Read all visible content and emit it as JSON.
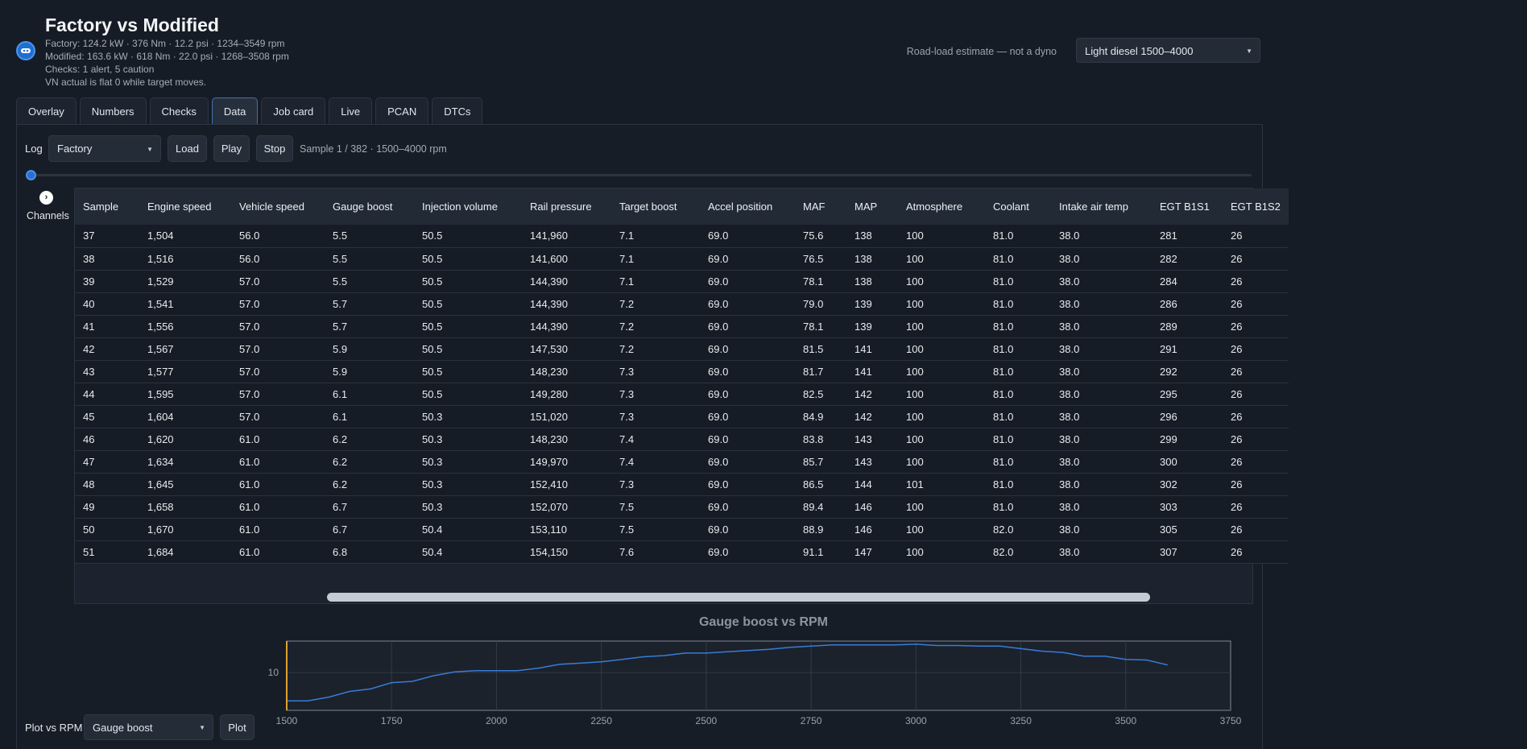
{
  "header": {
    "title": "Factory vs Modified",
    "factory_line": "Factory: 124.2 kW  ·  376 Nm  ·  12.2 psi  ·  1234–3549 rpm",
    "modified_line": "Modified: 163.6 kW  ·  618 Nm  ·  22.0 psi  ·  1268–3508 rpm",
    "checks_line": "Checks: 1 alert, 5 caution",
    "vn_line": "VN actual is flat 0 while target moves.",
    "road_note": "Road-load estimate — not a dyno",
    "profile_select": "Light diesel 1500–4000"
  },
  "tabs": [
    "Overlay",
    "Numbers",
    "Checks",
    "Data",
    "Job card",
    "Live",
    "PCAN",
    "DTCs"
  ],
  "active_tab": "Data",
  "toolbar": {
    "log_label": "Log",
    "log_select": "Factory",
    "load": "Load",
    "play": "Play",
    "stop": "Stop",
    "sample_info": "Sample 1 / 382  ·  1500–4000 rpm"
  },
  "channels": {
    "label": "Channels"
  },
  "table": {
    "columns": [
      "Sample",
      "Engine speed",
      "Vehicle speed",
      "Gauge boost",
      "Injection volume",
      "Rail pressure",
      "Target boost",
      "Accel position",
      "MAF",
      "MAP",
      "Atmosphere",
      "Coolant",
      "Intake air temp",
      "EGT B1S1",
      "EGT B1S2"
    ],
    "rows": [
      [
        "37",
        "1,504",
        "56.0",
        "5.5",
        "50.5",
        "141,960",
        "7.1",
        "69.0",
        "75.6",
        "138",
        "100",
        "81.0",
        "38.0",
        "281",
        "26"
      ],
      [
        "38",
        "1,516",
        "56.0",
        "5.5",
        "50.5",
        "141,600",
        "7.1",
        "69.0",
        "76.5",
        "138",
        "100",
        "81.0",
        "38.0",
        "282",
        "26"
      ],
      [
        "39",
        "1,529",
        "57.0",
        "5.5",
        "50.5",
        "144,390",
        "7.1",
        "69.0",
        "78.1",
        "138",
        "100",
        "81.0",
        "38.0",
        "284",
        "26"
      ],
      [
        "40",
        "1,541",
        "57.0",
        "5.7",
        "50.5",
        "144,390",
        "7.2",
        "69.0",
        "79.0",
        "139",
        "100",
        "81.0",
        "38.0",
        "286",
        "26"
      ],
      [
        "41",
        "1,556",
        "57.0",
        "5.7",
        "50.5",
        "144,390",
        "7.2",
        "69.0",
        "78.1",
        "139",
        "100",
        "81.0",
        "38.0",
        "289",
        "26"
      ],
      [
        "42",
        "1,567",
        "57.0",
        "5.9",
        "50.5",
        "147,530",
        "7.2",
        "69.0",
        "81.5",
        "141",
        "100",
        "81.0",
        "38.0",
        "291",
        "26"
      ],
      [
        "43",
        "1,577",
        "57.0",
        "5.9",
        "50.5",
        "148,230",
        "7.3",
        "69.0",
        "81.7",
        "141",
        "100",
        "81.0",
        "38.0",
        "292",
        "26"
      ],
      [
        "44",
        "1,595",
        "57.0",
        "6.1",
        "50.5",
        "149,280",
        "7.3",
        "69.0",
        "82.5",
        "142",
        "100",
        "81.0",
        "38.0",
        "295",
        "26"
      ],
      [
        "45",
        "1,604",
        "57.0",
        "6.1",
        "50.3",
        "151,020",
        "7.3",
        "69.0",
        "84.9",
        "142",
        "100",
        "81.0",
        "38.0",
        "296",
        "26"
      ],
      [
        "46",
        "1,620",
        "61.0",
        "6.2",
        "50.3",
        "148,230",
        "7.4",
        "69.0",
        "83.8",
        "143",
        "100",
        "81.0",
        "38.0",
        "299",
        "26"
      ],
      [
        "47",
        "1,634",
        "61.0",
        "6.2",
        "50.3",
        "149,970",
        "7.4",
        "69.0",
        "85.7",
        "143",
        "100",
        "81.0",
        "38.0",
        "300",
        "26"
      ],
      [
        "48",
        "1,645",
        "61.0",
        "6.2",
        "50.3",
        "152,410",
        "7.3",
        "69.0",
        "86.5",
        "144",
        "101",
        "81.0",
        "38.0",
        "302",
        "26"
      ],
      [
        "49",
        "1,658",
        "61.0",
        "6.7",
        "50.3",
        "152,070",
        "7.5",
        "69.0",
        "89.4",
        "146",
        "100",
        "81.0",
        "38.0",
        "303",
        "26"
      ],
      [
        "50",
        "1,670",
        "61.0",
        "6.7",
        "50.4",
        "153,110",
        "7.5",
        "69.0",
        "88.9",
        "146",
        "100",
        "82.0",
        "38.0",
        "305",
        "26"
      ],
      [
        "51",
        "1,684",
        "61.0",
        "6.8",
        "50.4",
        "154,150",
        "7.6",
        "69.0",
        "91.1",
        "147",
        "100",
        "82.0",
        "38.0",
        "307",
        "26"
      ]
    ]
  },
  "plot": {
    "label": "Plot vs RPM",
    "channel_select": "Gauge boost",
    "plot_button": "Plot"
  },
  "chart_data": {
    "type": "line",
    "title": "Gauge boost vs RPM",
    "xlabel": "",
    "ylabel": "",
    "xlim": [
      1500,
      3750
    ],
    "ylim": [
      4,
      15
    ],
    "xticks": [
      1500,
      1750,
      2000,
      2250,
      2500,
      2750,
      3000,
      3250,
      3500,
      3750
    ],
    "yticks": [
      10
    ],
    "grid": true,
    "series": [
      {
        "x": [
          1500,
          1550,
          1600,
          1650,
          1700,
          1750,
          1800,
          1850,
          1900,
          1950,
          2000,
          2050,
          2100,
          2150,
          2200,
          2250,
          2300,
          2350,
          2400,
          2450,
          2500,
          2550,
          2600,
          2650,
          2700,
          2750,
          2800,
          2850,
          2900,
          2950,
          3000,
          3050,
          3100,
          3150,
          3200,
          3250,
          3300,
          3350,
          3400,
          3450,
          3500,
          3550,
          3600
        ],
        "y": [
          5.5,
          5.5,
          6.1,
          7.0,
          7.4,
          8.4,
          8.6,
          9.5,
          10.1,
          10.3,
          10.3,
          10.3,
          10.7,
          11.3,
          11.5,
          11.7,
          12.1,
          12.5,
          12.7,
          13.1,
          13.1,
          13.3,
          13.5,
          13.7,
          14.0,
          14.2,
          14.4,
          14.4,
          14.4,
          14.4,
          14.5,
          14.3,
          14.3,
          14.2,
          14.2,
          13.8,
          13.4,
          13.2,
          12.6,
          12.6,
          12.1,
          12.0,
          11.2
        ],
        "color": "#3a7bd5"
      }
    ],
    "marker_x": 1500,
    "marker_color": "#e0a030"
  }
}
